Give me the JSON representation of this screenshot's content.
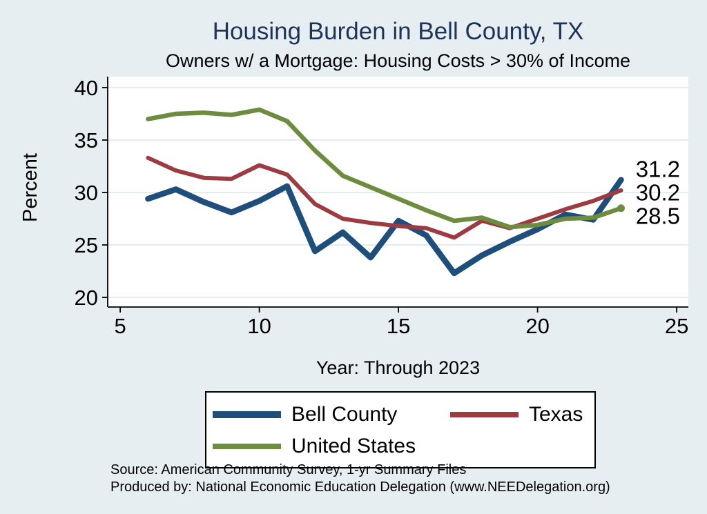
{
  "chart_data": {
    "type": "line",
    "title": "Housing Burden in Bell County, TX",
    "subtitle": "Owners w/ a Mortgage: Housing Costs > 30% of Income",
    "xlabel": "Year: Through 2023",
    "ylabel": "Percent",
    "x": [
      6,
      7,
      8,
      9,
      10,
      11,
      12,
      13,
      14,
      15,
      16,
      17,
      18,
      19,
      20,
      21,
      22,
      23
    ],
    "xticks": [
      5,
      10,
      15,
      20,
      25
    ],
    "yticks": [
      20,
      25,
      30,
      35,
      40
    ],
    "xlim": [
      4.55,
      25.42
    ],
    "ylim": [
      19.08,
      41.05
    ],
    "grid": "horizontal",
    "legend_position": "bottom-center",
    "series": [
      {
        "name": "Bell County",
        "color": "#1f4e7a",
        "line_width": 8.5,
        "end_label": "31.2",
        "end_marker": false,
        "values": [
          29.4,
          30.3,
          29.1,
          28.1,
          29.2,
          30.6,
          24.4,
          26.2,
          23.8,
          27.3,
          25.9,
          22.3,
          24.0,
          25.3,
          26.5,
          27.9,
          27.4,
          31.2
        ]
      },
      {
        "name": "Texas",
        "color": "#9d3b43",
        "line_width": 6,
        "end_label": "30.2",
        "end_marker": false,
        "values": [
          33.3,
          32.1,
          31.4,
          31.3,
          32.6,
          31.7,
          28.9,
          27.5,
          27.1,
          26.8,
          26.6,
          25.7,
          27.3,
          26.6,
          27.5,
          28.4,
          29.2,
          30.2
        ]
      },
      {
        "name": "United States",
        "color": "#6d8c3f",
        "line_width": 6.5,
        "end_label": "28.5",
        "end_marker": true,
        "values": [
          37.0,
          37.5,
          37.6,
          37.4,
          37.9,
          36.8,
          34.0,
          31.6,
          30.5,
          29.4,
          28.3,
          27.3,
          27.6,
          26.7,
          26.9,
          27.5,
          27.6,
          28.5
        ]
      }
    ]
  },
  "footer": {
    "source_line1": "Source: American Community Survey, 1-yr Summary Files",
    "source_line2": "Produced by: National Economic Education Delegation (www.NEEDelegation.org)"
  },
  "colors": {
    "background": "#e6eef2",
    "plot_background": "#ffffff",
    "gridline": "#e3edf0",
    "axis": "#000000",
    "title": "#1e3358",
    "tick_label": "#000000",
    "end_label": "#000000"
  }
}
